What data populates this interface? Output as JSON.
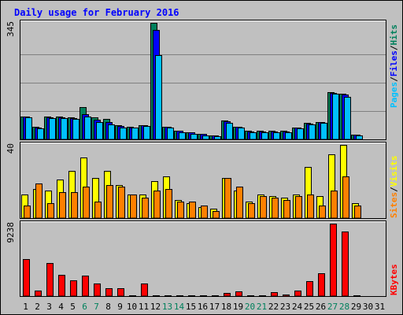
{
  "chart_data": {
    "type": "bar",
    "title": "Daily usage for February 2016",
    "x": [
      "1",
      "2",
      "3",
      "4",
      "5",
      "6",
      "7",
      "8",
      "9",
      "10",
      "11",
      "12",
      "13",
      "14",
      "15",
      "16",
      "17",
      "18",
      "19",
      "20",
      "21",
      "22",
      "23",
      "24",
      "25",
      "26",
      "27",
      "28",
      "29",
      "30",
      "31"
    ],
    "weekend_days": [
      "6",
      "7",
      "13",
      "14",
      "20",
      "21",
      "27",
      "28"
    ],
    "colors": {
      "background": "#c0c0c0",
      "plot": "#c0c0c0",
      "title": "#0000ff",
      "weekday_label": "#000000",
      "weekend_label": "#00805c",
      "hits": "#00805c",
      "files": "#0000ff",
      "pages": "#00c0ff",
      "visits": "#ffff00",
      "sites": "#ff8000",
      "kbytes": "#ff0000"
    },
    "panels": [
      {
        "name": "hits-files-pages",
        "ymax_label": "345",
        "ymax": 345,
        "legend": [
          "Pages",
          "/",
          "Files",
          "/",
          "Hits"
        ],
        "legend_colors": [
          "#00c0ff",
          "#000000",
          "#0000ff",
          "#000000",
          "#00805c"
        ],
        "series": [
          {
            "name": "Hits",
            "color": "#00805c",
            "values": [
              68,
              38,
              68,
              68,
              65,
              95,
              65,
              60,
              42,
              38,
              42,
              345,
              38,
              25,
              20,
              16,
              12,
              55,
              38,
              25,
              25,
              25,
              25,
              35,
              48,
              52,
              140,
              135,
              15,
              0,
              0
            ]
          },
          {
            "name": "Files",
            "color": "#0000ff",
            "values": [
              68,
              36,
              66,
              65,
              62,
              75,
              58,
              52,
              40,
              36,
              41,
              325,
              38,
              25,
              20,
              16,
              11,
              53,
              37,
              24,
              24,
              24,
              23,
              35,
              47,
              51,
              138,
              133,
              14,
              0,
              0
            ]
          },
          {
            "name": "Pages",
            "color": "#00c0ff",
            "values": [
              65,
              33,
              62,
              62,
              60,
              68,
              52,
              45,
              36,
              34,
              40,
              250,
              36,
              20,
              16,
              12,
              10,
              50,
              34,
              20,
              20,
              20,
              20,
              32,
              45,
              48,
              135,
              125,
              12,
              0,
              0
            ]
          }
        ]
      },
      {
        "name": "visits-sites",
        "ymax_label": "40",
        "ymax": 40,
        "legend": [
          "Sites",
          "/",
          "Visits"
        ],
        "legend_colors": [
          "#ff8000",
          "#000000",
          "#ffff00"
        ],
        "series": [
          {
            "name": "Visits",
            "color": "#ffff00",
            "values": [
              13,
              16,
              15,
              21,
              26,
              33,
              22,
              26,
              18,
              13,
              13,
              20,
              23,
              10,
              8,
              6,
              5,
              22,
              15,
              9,
              13,
              12,
              11,
              13,
              28,
              12,
              35,
              40,
              8,
              0,
              0
            ]
          },
          {
            "name": "Sites",
            "color": "#ff8000",
            "values": [
              7,
              19,
              8,
              14,
              14,
              17,
              9,
              18,
              17,
              13,
              11,
              15,
              16,
              9,
              9,
              7,
              4,
              22,
              17,
              8,
              12,
              11,
              10,
              12,
              13,
              7,
              15,
              23,
              7,
              0,
              0
            ]
          }
        ]
      },
      {
        "name": "kbytes",
        "ymax_label": "9238",
        "ymax": 9238,
        "legend": [
          "KBytes"
        ],
        "legend_colors": [
          "#ff0000"
        ],
        "series": [
          {
            "name": "KBytes",
            "color": "#ff0000",
            "values": [
              4700,
              750,
              4200,
              2750,
              2000,
              2650,
              1650,
              1050,
              1050,
              100,
              1600,
              150,
              150,
              150,
              100,
              100,
              100,
              450,
              650,
              100,
              100,
              550,
              200,
              700,
              1950,
              2900,
              9238,
              8200,
              150,
              0,
              0
            ]
          }
        ]
      }
    ]
  }
}
